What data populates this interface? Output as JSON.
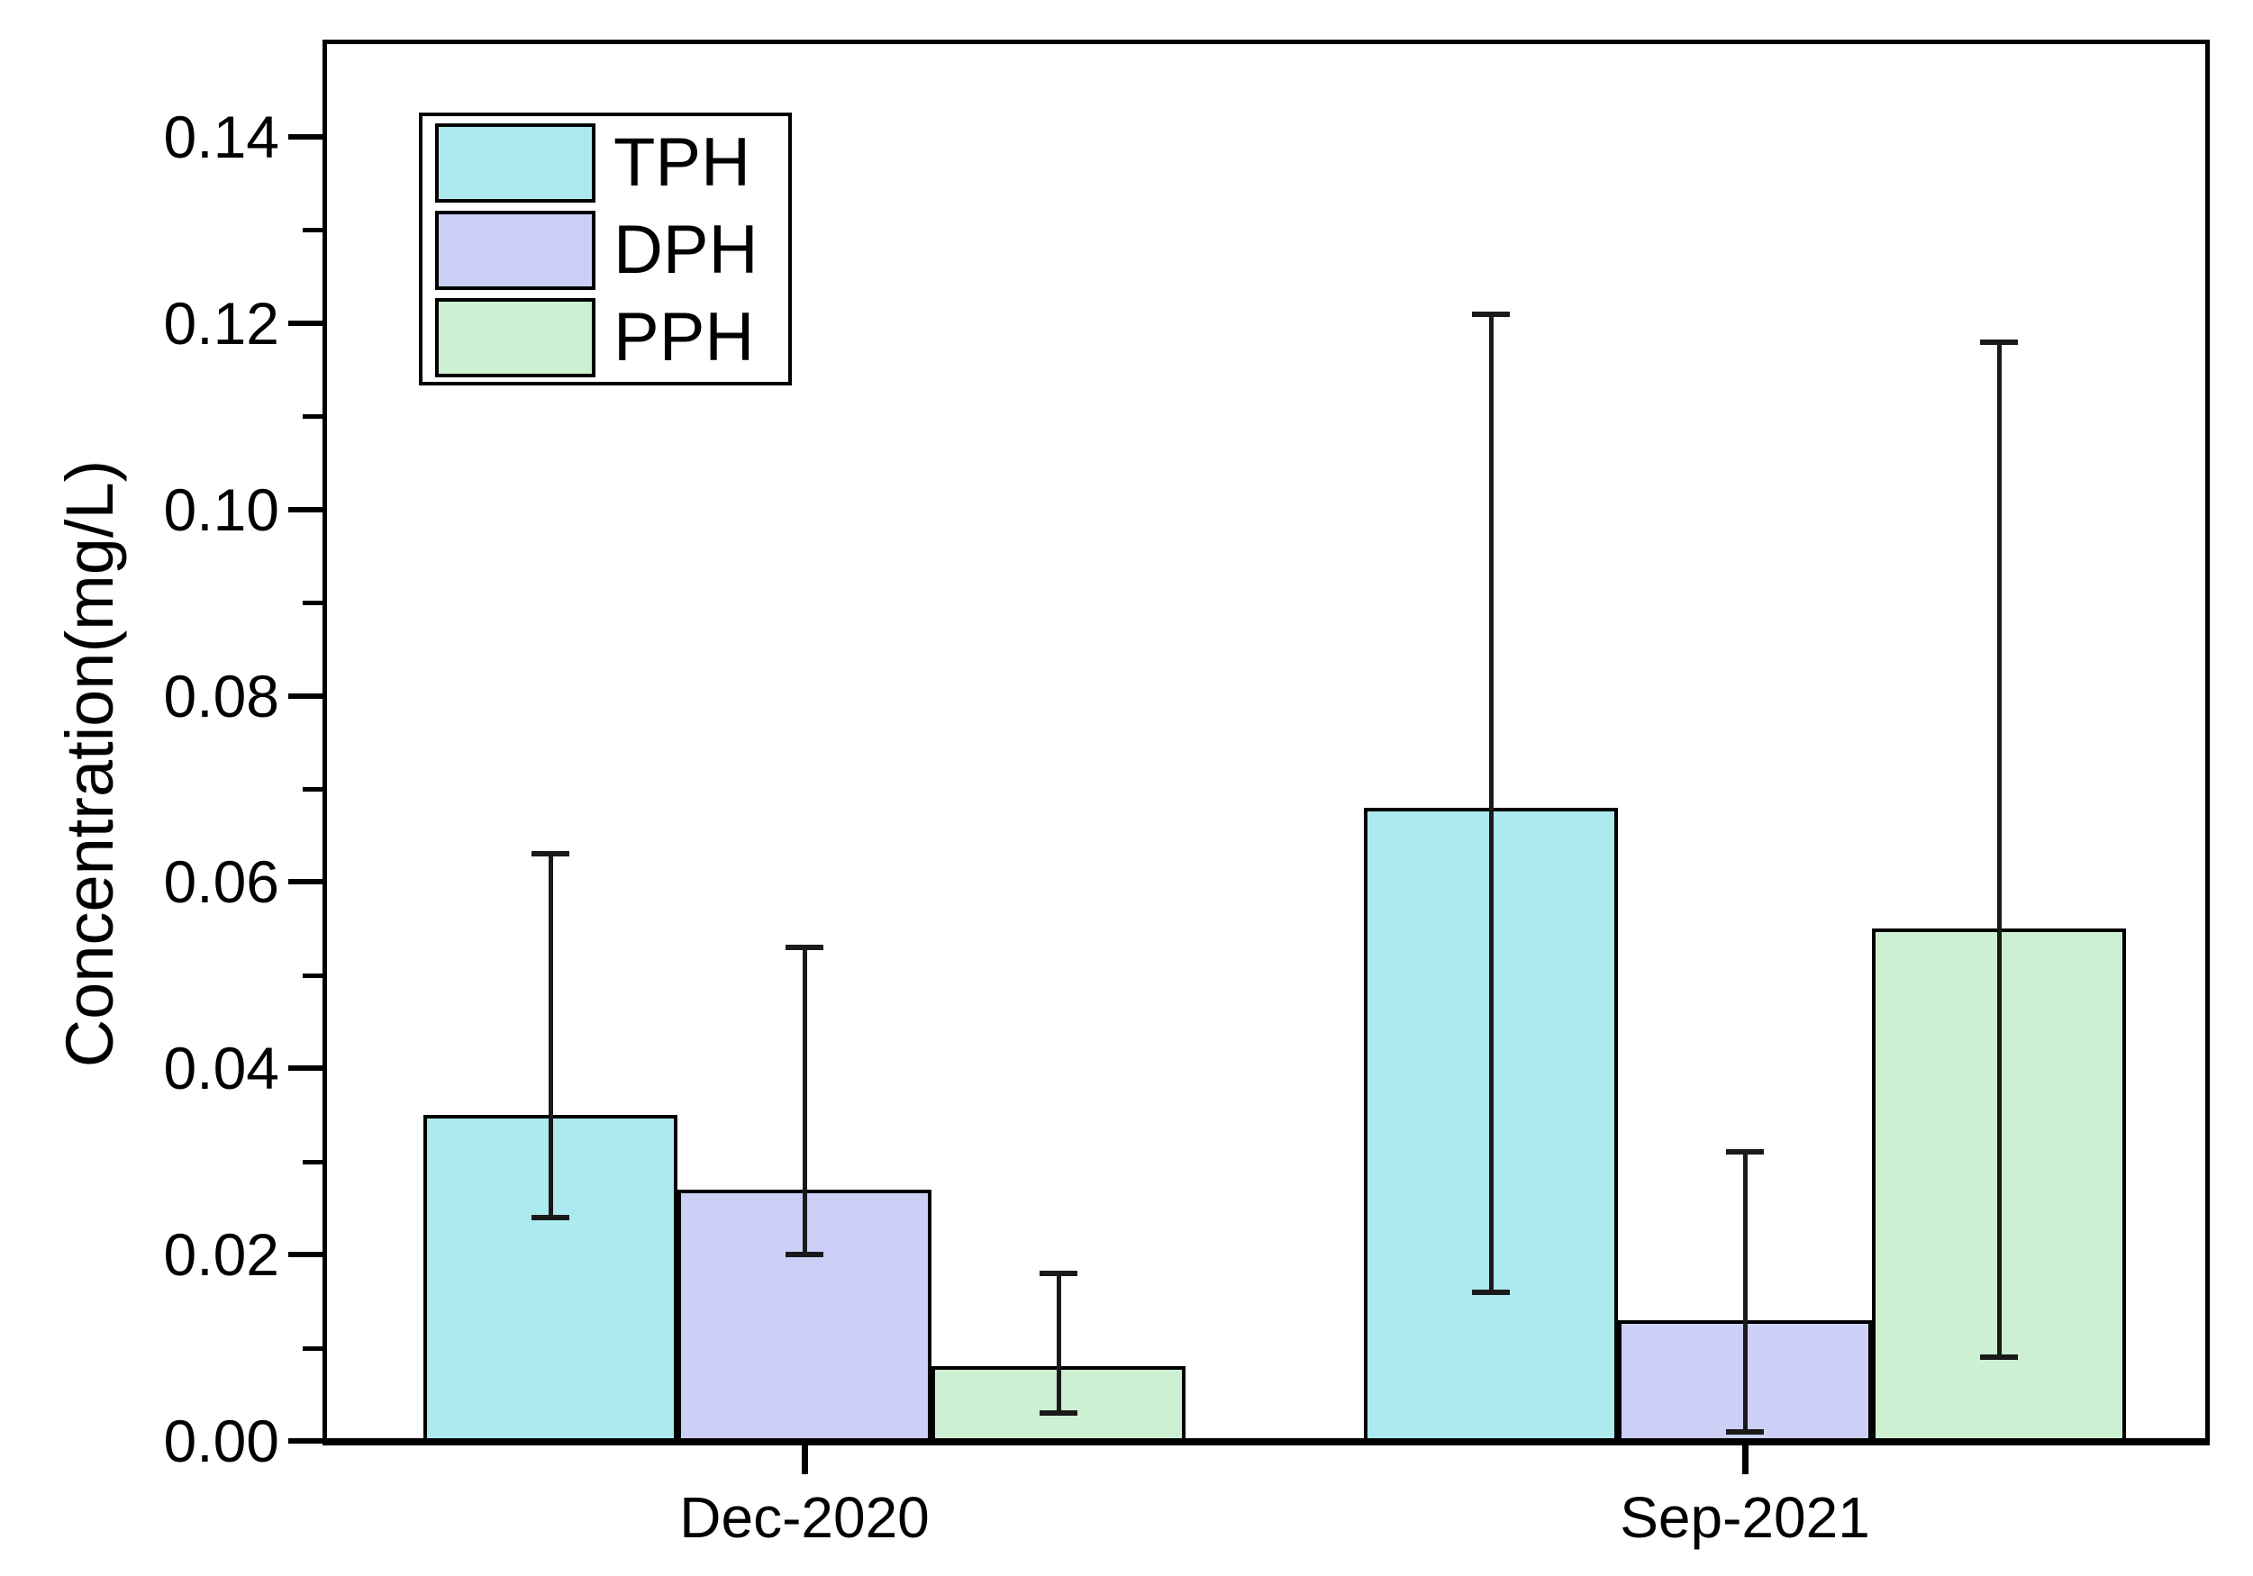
{
  "chart_data": {
    "type": "bar",
    "title": "",
    "xlabel": "",
    "ylabel": "Concentration(mg/L)",
    "categories": [
      "Dec-2020",
      "Sep-2021"
    ],
    "series": [
      {
        "name": "TPH",
        "color": "#aceaf0",
        "values": [
          0.035,
          0.068
        ],
        "error_low": [
          0.024,
          0.016
        ],
        "error_high": [
          0.063,
          0.121
        ]
      },
      {
        "name": "DPH",
        "color": "#ccd0f6",
        "values": [
          0.027,
          0.013
        ],
        "error_low": [
          0.02,
          0.001
        ],
        "error_high": [
          0.053,
          0.031
        ]
      },
      {
        "name": "PPH",
        "color": "#cdf0d2",
        "values": [
          0.008,
          0.055
        ],
        "error_low": [
          0.003,
          0.009
        ],
        "error_high": [
          0.018,
          0.118
        ]
      }
    ],
    "ylim": [
      0,
      0.15
    ],
    "yticks": {
      "values": [
        0.0,
        0.02,
        0.04,
        0.06,
        0.08,
        0.1,
        0.12,
        0.14
      ],
      "labels": [
        "0.00",
        "0.02",
        "0.04",
        "0.06",
        "0.08",
        "0.10",
        "0.12",
        "0.14"
      ],
      "minor": [
        0.01,
        0.03,
        0.05,
        0.07,
        0.09,
        0.11,
        0.13
      ]
    },
    "grid": false,
    "legend_position": "top-left",
    "frame_color": "#000000",
    "error_bar_color": "#1a1a1a",
    "background_color": "#ffffff"
  }
}
